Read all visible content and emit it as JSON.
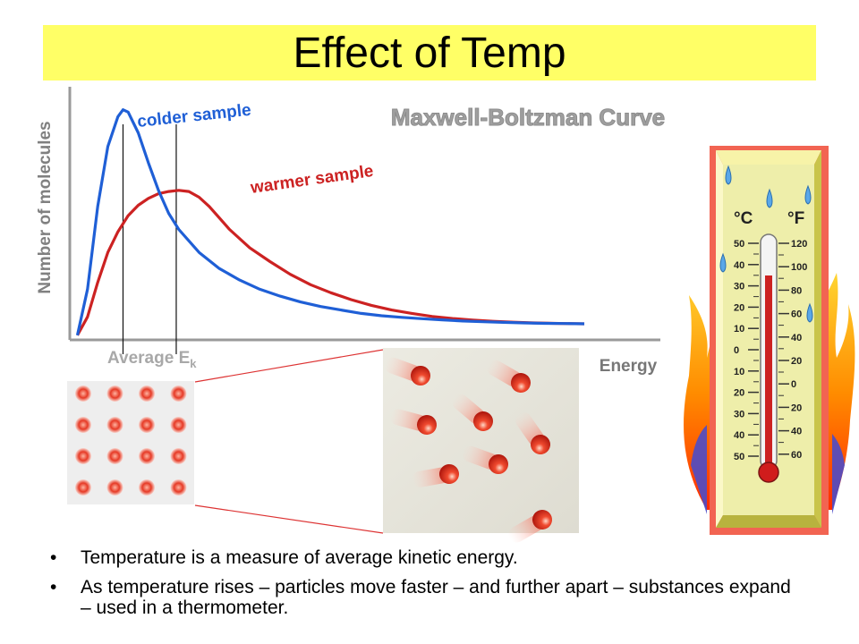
{
  "slide": {
    "title": "Effect of Temp",
    "accent_color": "#ffff66",
    "bullets": [
      "Temperature is a measure of average kinetic energy.",
      "As temperature rises – particles move faster – and further apart – substances expand – used in a thermometer."
    ]
  },
  "chart_data": {
    "type": "line",
    "title": "Maxwell-Boltzman Curve",
    "xlabel": "Energy",
    "ylabel": "Number of molecules",
    "grid": false,
    "series": [
      {
        "name": "colder sample",
        "color": "#1f5fd6",
        "x": [
          0,
          2,
          4,
          6,
          8,
          9,
          10,
          12,
          14,
          16,
          18,
          20,
          24,
          28,
          32,
          36,
          40,
          44,
          48,
          52,
          56,
          60,
          64,
          68,
          72,
          76,
          80,
          84,
          88,
          92,
          96,
          100
        ],
        "y": [
          2,
          22,
          58,
          84,
          97,
          100,
          99,
          90,
          77,
          65,
          55,
          48,
          38,
          31,
          26,
          22,
          19,
          16.5,
          14.5,
          13,
          11.5,
          10.5,
          9.8,
          9.2,
          8.7,
          8.2,
          7.9,
          7.6,
          7.4,
          7.2,
          7.1,
          7
        ]
      },
      {
        "name": "warmer sample",
        "color": "#cc2222",
        "x": [
          0,
          2,
          4,
          6,
          8,
          10,
          12,
          14,
          16,
          18,
          20,
          22,
          24,
          26,
          28,
          30,
          34,
          38,
          42,
          46,
          50,
          54,
          58,
          62,
          66,
          70,
          74,
          78,
          82,
          86,
          90,
          94,
          98,
          100
        ],
        "y": [
          2,
          10,
          25,
          38,
          47,
          54,
          58.5,
          61.5,
          63.5,
          64.5,
          65,
          64.5,
          62,
          58,
          53,
          48,
          40,
          34,
          28.5,
          24,
          20.5,
          17.5,
          15,
          13,
          11.5,
          10.2,
          9.3,
          8.6,
          8.1,
          7.7,
          7.4,
          7.2,
          7.05,
          7
        ]
      }
    ],
    "reference_lines": [
      {
        "series": "colder sample",
        "x": 9
      },
      {
        "series": "warmer sample",
        "x": 19.5
      }
    ],
    "reference_label": "Average E",
    "reference_label_sub": "k",
    "xlim": [
      -1.5,
      115
    ],
    "ylim": [
      0,
      110
    ]
  },
  "particles": {
    "compact_color": "#e03a2a",
    "count_compact": 16,
    "count_spread": 8
  },
  "thermometer": {
    "unit_c": "°C",
    "unit_f": "°F",
    "celsius_ticks": [
      "50",
      "40",
      "30",
      "20",
      "10",
      "0",
      "10",
      "20",
      "30",
      "40",
      "50"
    ],
    "fahrenheit_ticks": [
      "120",
      "100",
      "80",
      "60",
      "40",
      "20",
      "0",
      "20",
      "40",
      "60"
    ]
  }
}
